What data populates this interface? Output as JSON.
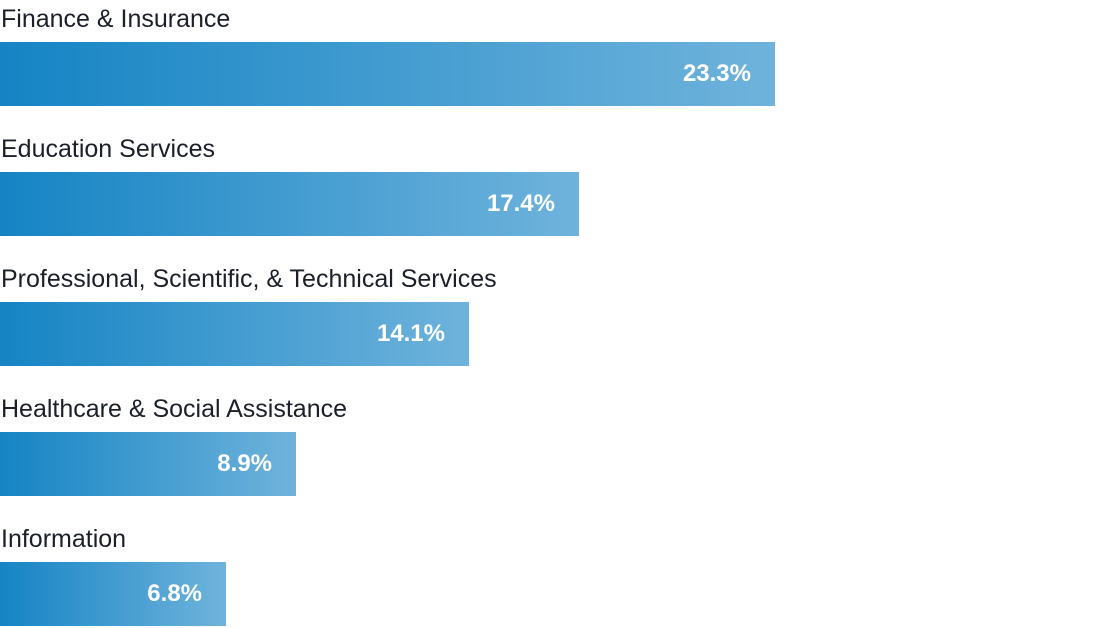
{
  "chart_data": {
    "type": "bar",
    "orientation": "horizontal",
    "categories": [
      "Finance & Insurance",
      "Education Services",
      "Professional, Scientific, & Technical Services",
      "Healthcare & Social Assistance",
      "Information"
    ],
    "values": [
      23.3,
      17.4,
      14.1,
      8.9,
      6.8
    ],
    "value_labels": [
      "23.3%",
      "17.4%",
      "14.1%",
      "8.9%",
      "6.8%"
    ],
    "xlim": [
      0,
      33.2
    ],
    "grid": false,
    "legend": "none",
    "colors": {
      "bar_start": "#1584c4",
      "bar_end": "#6fb3dc",
      "label_text": "#1b1f2a",
      "value_text": "#ffffff"
    }
  }
}
